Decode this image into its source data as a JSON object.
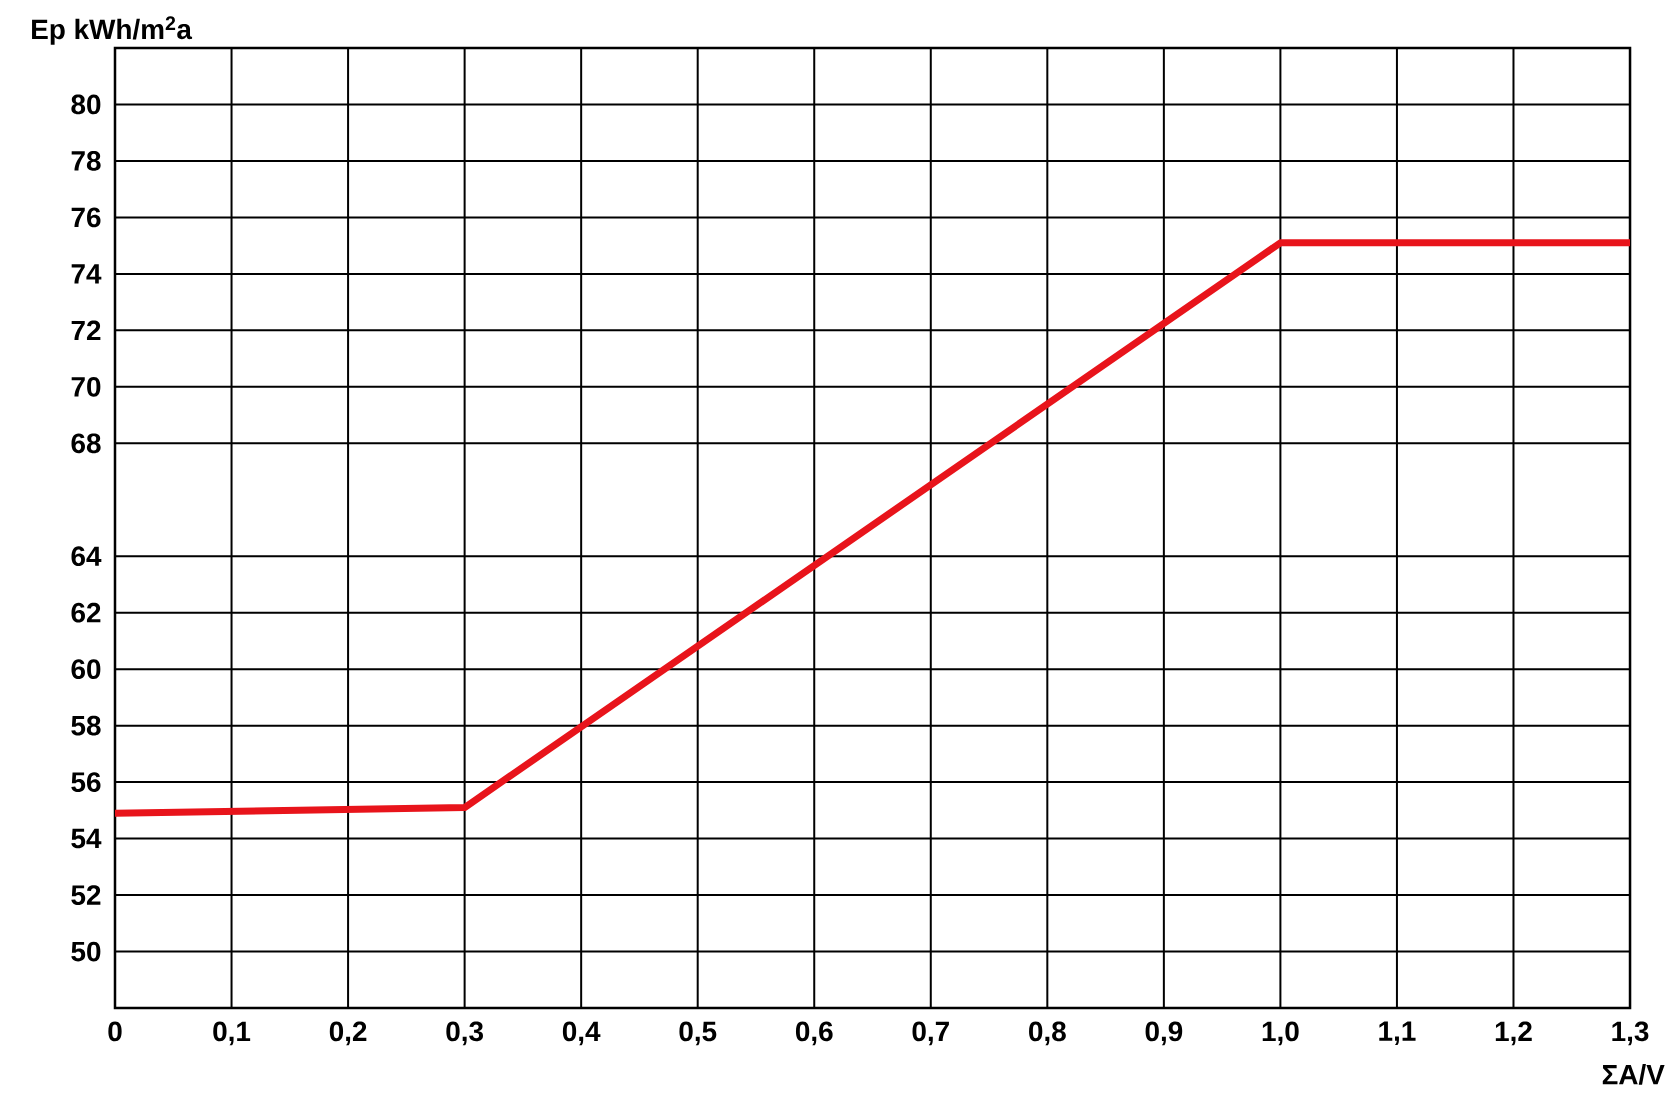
{
  "chart_data": {
    "type": "line",
    "xlabel": "ΣA/V",
    "ylabel": "Ep kWh/m$^{2}$a",
    "x": [
      0,
      0.3,
      1.0,
      1.3
    ],
    "series": [
      {
        "color": "#e8141b",
        "values": [
          54.9,
          55.1,
          75.1,
          75.1
        ]
      }
    ],
    "xlim": [
      0,
      1.3
    ],
    "ylim": [
      48,
      82
    ],
    "xticks": [
      {
        "value": 0,
        "label": "0"
      },
      {
        "value": 0.1,
        "label": "0,1"
      },
      {
        "value": 0.2,
        "label": "0,2"
      },
      {
        "value": 0.3,
        "label": "0,3"
      },
      {
        "value": 0.4,
        "label": "0,4"
      },
      {
        "value": 0.5,
        "label": "0,5"
      },
      {
        "value": 0.6,
        "label": "0,6"
      },
      {
        "value": 0.7,
        "label": "0,7"
      },
      {
        "value": 0.8,
        "label": "0,8"
      },
      {
        "value": 0.9,
        "label": "0,9"
      },
      {
        "value": 1.0,
        "label": "1,0"
      },
      {
        "value": 1.1,
        "label": "1,1"
      },
      {
        "value": 1.2,
        "label": "1,2"
      },
      {
        "value": 1.3,
        "label": "1,3"
      }
    ],
    "yticks": [
      50,
      52,
      54,
      56,
      58,
      60,
      62,
      64,
      68,
      70,
      72,
      74,
      76,
      78,
      80
    ],
    "grid": true,
    "marker": "none",
    "line_style": "solid"
  }
}
